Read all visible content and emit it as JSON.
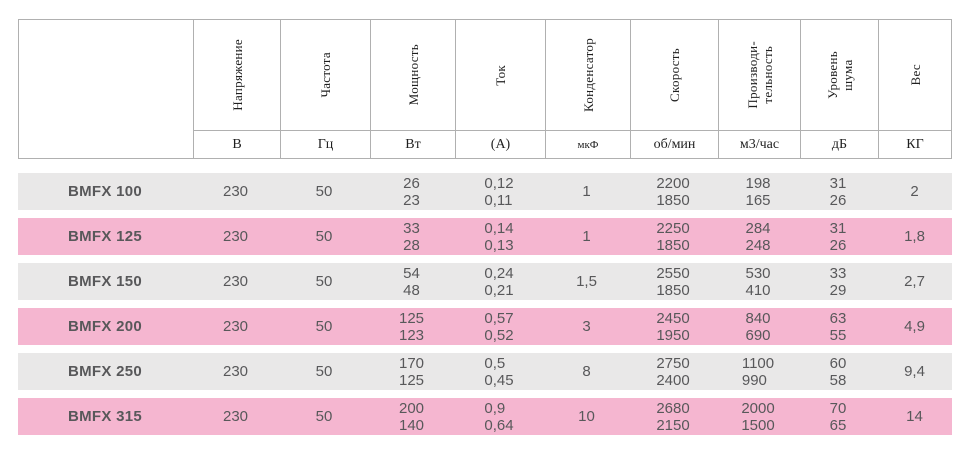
{
  "header": {
    "columns": [
      {
        "key": "voltage",
        "name": "Напряжение",
        "unit": "В"
      },
      {
        "key": "frequency",
        "name": "Частота",
        "unit": "Гц"
      },
      {
        "key": "power",
        "name": "Мощность",
        "unit": "Вт"
      },
      {
        "key": "current",
        "name": "Ток",
        "unit": "(А)"
      },
      {
        "key": "capacitor",
        "name": "Конденсатор",
        "unit": "мкФ"
      },
      {
        "key": "speed",
        "name": "Скорость",
        "unit": "об/мин"
      },
      {
        "key": "productivity",
        "name": "Производи-\nтельность",
        "unit": "м3/час"
      },
      {
        "key": "noise",
        "name": "Уровень\nшума",
        "unit": "дБ"
      },
      {
        "key": "weight",
        "name": "Вес",
        "unit": "КГ"
      }
    ]
  },
  "rows": [
    {
      "model": "BMFX 100",
      "voltage": "230",
      "frequency": "50",
      "power": "26\n23",
      "current": "0,12\n0,11",
      "capacitor": "1",
      "speed": "2200\n1850",
      "productivity": "198\n165",
      "noise": "31\n26",
      "weight": "2"
    },
    {
      "model": "BMFX 125",
      "voltage": "230",
      "frequency": "50",
      "power": "33\n28",
      "current": "0,14\n0,13",
      "capacitor": "1",
      "speed": "2250\n1850",
      "productivity": "284\n248",
      "noise": "31\n26",
      "weight": "1,8"
    },
    {
      "model": "BMFX 150",
      "voltage": "230",
      "frequency": "50",
      "power": "54\n48",
      "current": "0,24\n0,21",
      "capacitor": "1,5",
      "speed": "2550\n1850",
      "productivity": "530\n410",
      "noise": "33\n29",
      "weight": "2,7"
    },
    {
      "model": "BMFX 200",
      "voltage": "230",
      "frequency": "50",
      "power": "125\n123",
      "current": "0,57\n0,52",
      "capacitor": "3",
      "speed": "2450\n1950",
      "productivity": "840\n690",
      "noise": "63\n55",
      "weight": "4,9"
    },
    {
      "model": "BMFX 250",
      "voltage": "230",
      "frequency": "50",
      "power": "170\n125",
      "current": "0,5\n0,45",
      "capacitor": "8",
      "speed": "2750\n2400",
      "productivity": "1100\n990",
      "noise": "60\n58",
      "weight": "9,4"
    },
    {
      "model": "BMFX 315",
      "voltage": "230",
      "frequency": "50",
      "power": "200\n140",
      "current": "0,9\n0,64",
      "capacitor": "10",
      "speed": "2680\n2150",
      "productivity": "2000\n1500",
      "noise": "70\n65",
      "weight": "14"
    }
  ],
  "colors": {
    "row_gray": "#e9e8e8",
    "row_pink": "#f5b6d0",
    "border": "#b0b0b0",
    "data_text": "#58585a",
    "header_text": "#1f1f1f"
  }
}
